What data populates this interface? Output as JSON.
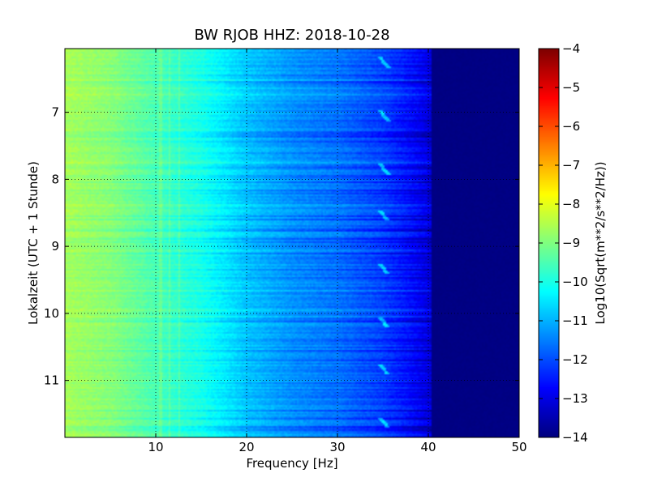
{
  "chart_data": {
    "type": "heatmap",
    "title": "BW RJOB HHZ: 2018-10-28",
    "xlabel": "Frequency [Hz]",
    "ylabel": "Lokalzeit (UTC + 1 Stunde)",
    "xlim": [
      0,
      50
    ],
    "ylim": [
      6.05,
      11.85
    ],
    "y_inverted": true,
    "x_ticks": [
      10,
      20,
      30,
      40,
      50
    ],
    "y_ticks": [
      7,
      8,
      9,
      10,
      11
    ],
    "x_tick_labels": [
      "10",
      "20",
      "30",
      "40",
      "50"
    ],
    "y_tick_labels": [
      "7",
      "8",
      "9",
      "10",
      "11"
    ],
    "grid": true,
    "grid_style": "dotted",
    "colormap": "jet",
    "colorbar": {
      "label": "Log10(Sqrt(m**2/s**2/Hz))",
      "range": [
        -14,
        -4
      ],
      "ticks": [
        -4,
        -5,
        -6,
        -7,
        -8,
        -9,
        -10,
        -11,
        -12,
        -13,
        -14
      ],
      "tick_labels": [
        "−4",
        "−5",
        "−6",
        "−7",
        "−8",
        "−9",
        "−10",
        "−11",
        "−12",
        "−13",
        "−14"
      ]
    },
    "spectrum_profile": {
      "frequencies_hz": [
        0,
        5,
        10,
        15,
        20,
        25,
        30,
        35,
        38,
        40,
        42,
        50
      ],
      "log10_amplitude": [
        -8.6,
        -8.9,
        -9.5,
        -10.0,
        -10.8,
        -11.3,
        -11.6,
        -12.1,
        -12.6,
        -13.0,
        -13.9,
        -14.0
      ]
    },
    "features": [
      {
        "name": "spectral line ~10-12 Hz",
        "freq_hz": [
          10.5,
          11.5,
          12.5
        ]
      },
      {
        "name": "recurring chirp ~34-35 Hz",
        "freq_hz": [
          34,
          35.5
        ],
        "times": [
          6.3,
          7.1,
          7.9,
          8.6,
          9.4,
          10.2,
          10.9,
          11.7
        ]
      }
    ]
  }
}
